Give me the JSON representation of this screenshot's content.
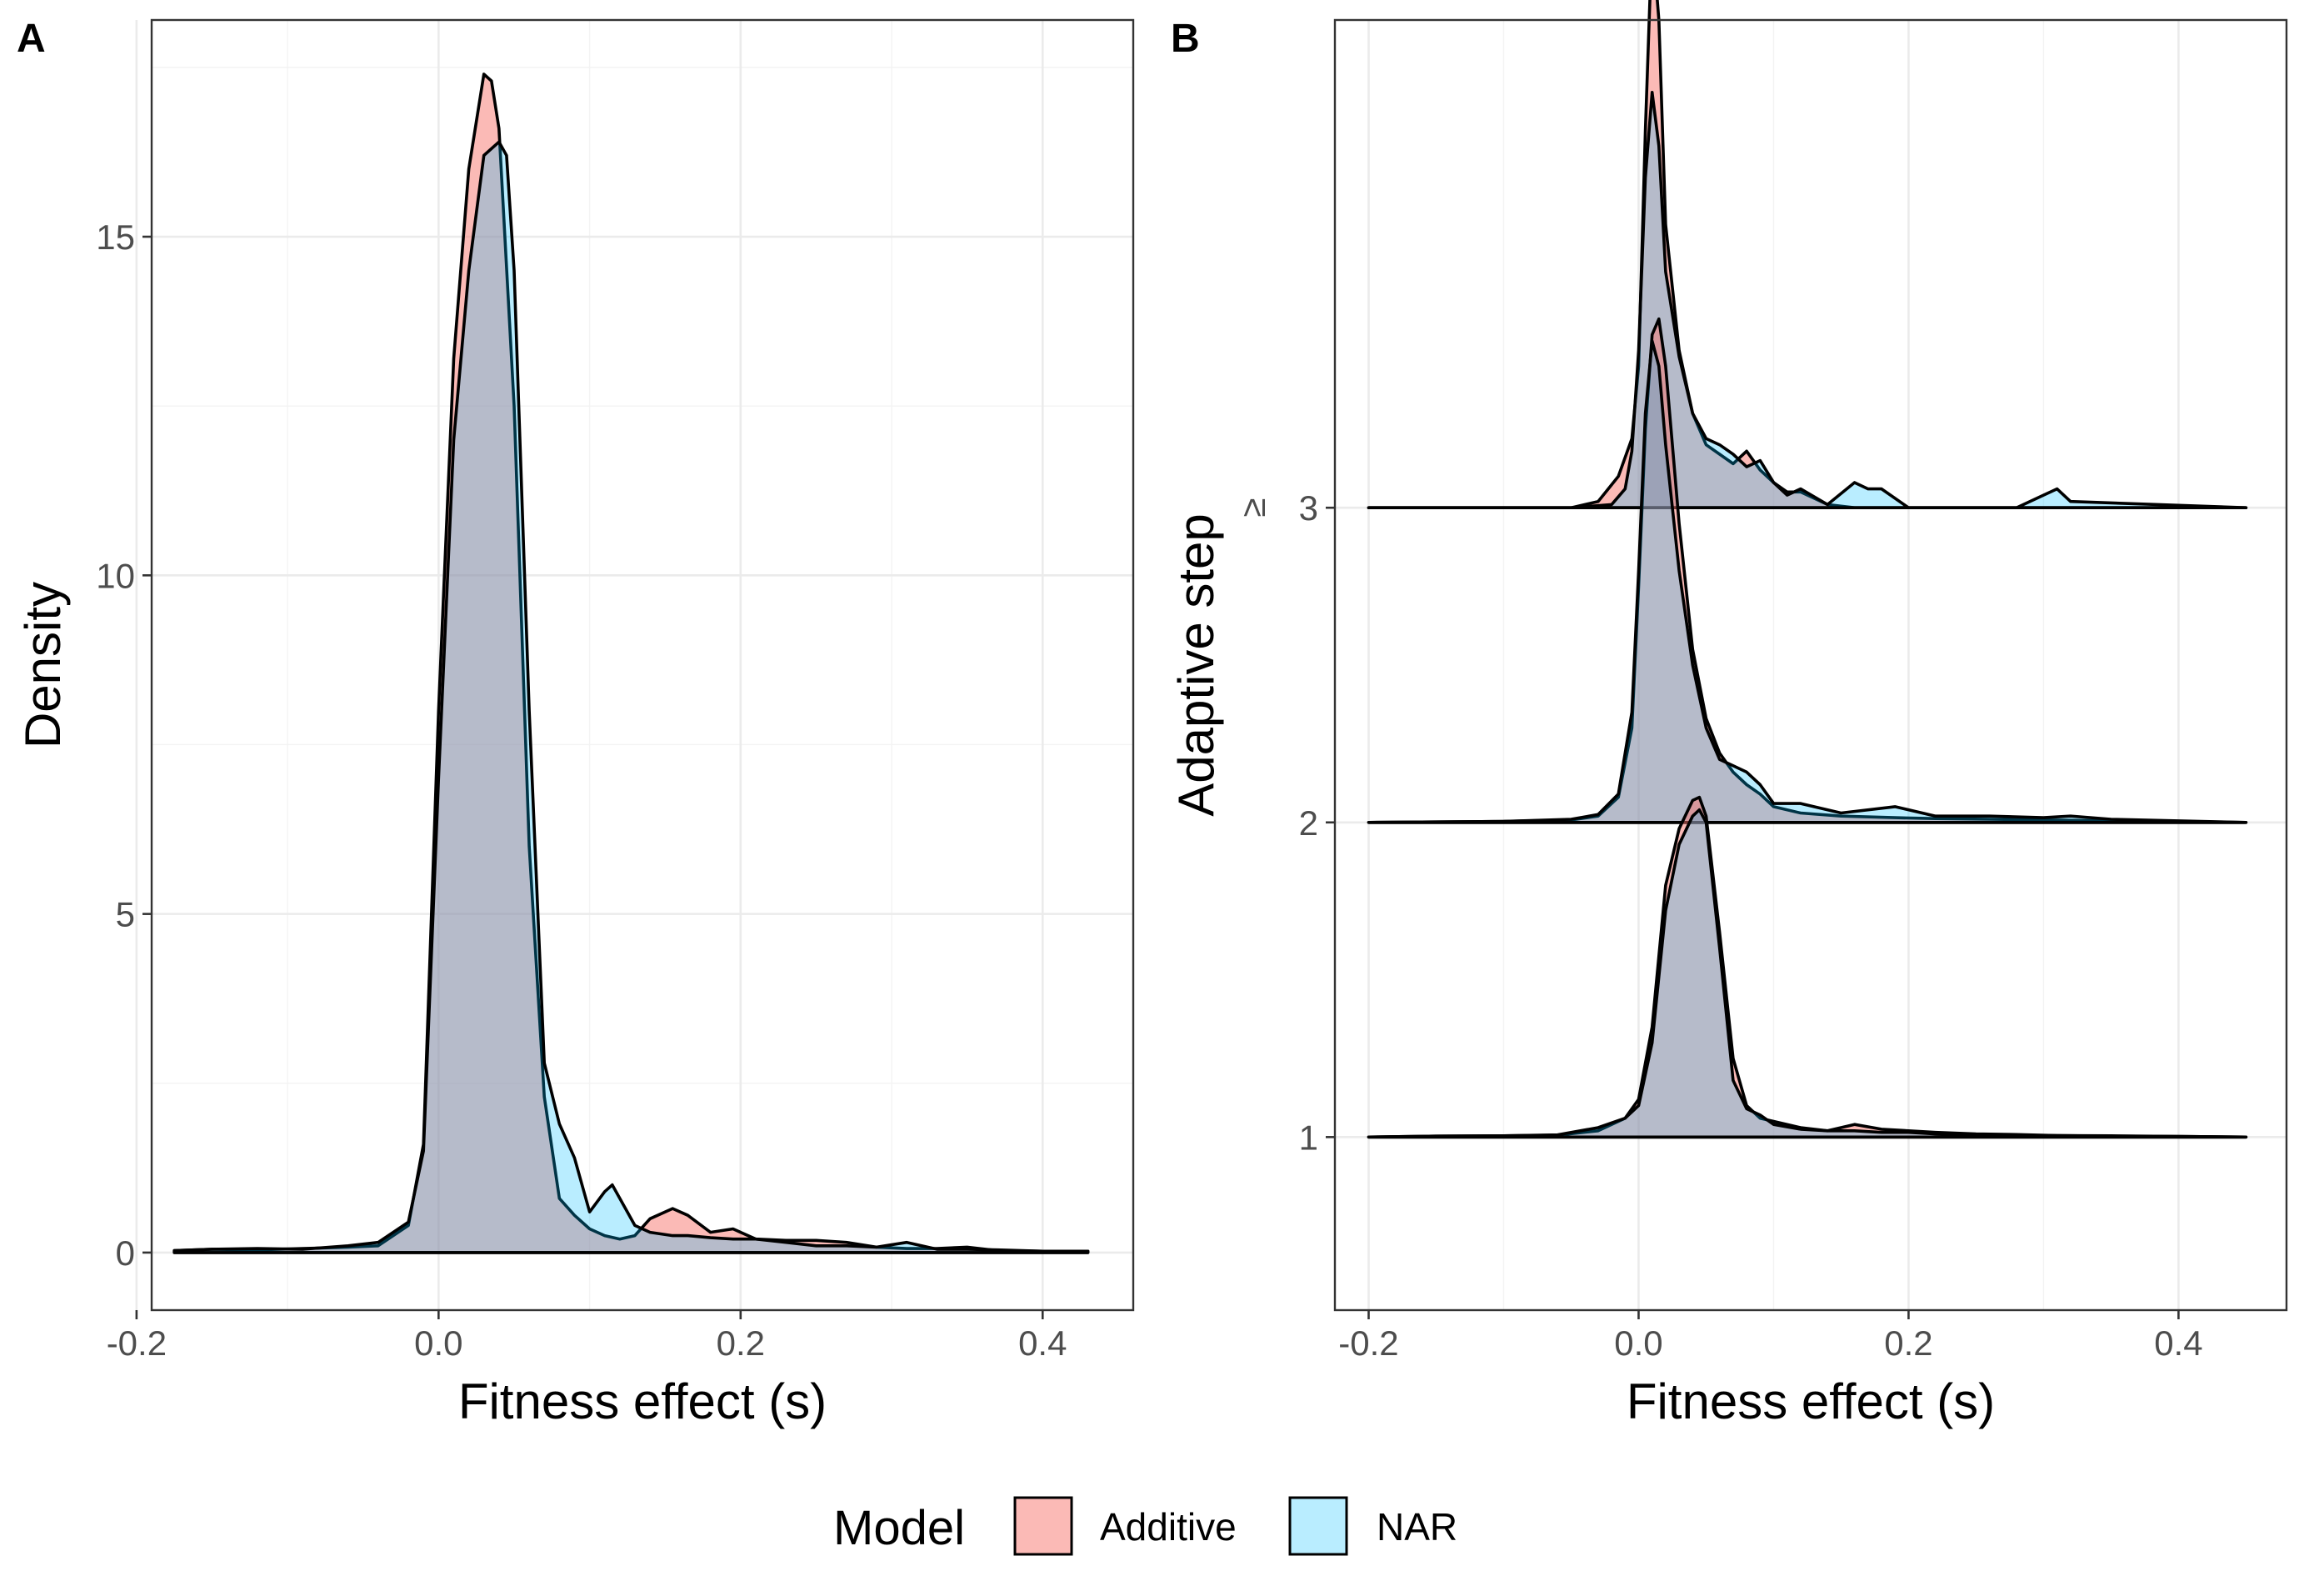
{
  "colors": {
    "Additive": "#F8766D",
    "NAR": "#00BFFF",
    "overlap_hint": "#a9b4b6",
    "outline": "#000000"
  },
  "legend": {
    "title": "Model",
    "items": [
      "Additive",
      "NAR"
    ],
    "placement": "bottom-center"
  },
  "chart_data": [
    {
      "panel": "A",
      "type": "area",
      "title": "",
      "xlabel": "Fitness effect (s)",
      "ylabel": "Density",
      "xlim": [
        -0.19,
        0.46
      ],
      "ylim": [
        -0.85,
        18.2
      ],
      "xticks": [
        -0.2,
        0.0,
        0.2,
        0.4
      ],
      "xtick_labels": [
        "-0.2",
        "0.0",
        "0.2",
        "0.4"
      ],
      "yticks": [
        0,
        5,
        10,
        15
      ],
      "ytick_labels": [
        "0",
        "5",
        "10",
        "15"
      ],
      "grid": true,
      "series": [
        {
          "name": "Additive",
          "x": [
            -0.175,
            -0.15,
            -0.12,
            -0.09,
            -0.06,
            -0.04,
            -0.02,
            -0.01,
            0.0,
            0.01,
            0.02,
            0.03,
            0.035,
            0.04,
            0.05,
            0.06,
            0.07,
            0.08,
            0.09,
            0.1,
            0.11,
            0.12,
            0.13,
            0.14,
            0.155,
            0.165,
            0.18,
            0.195,
            0.21,
            0.23,
            0.25,
            0.27,
            0.29,
            0.31,
            0.33,
            0.35,
            0.37,
            0.4,
            0.43
          ],
          "y": [
            0.03,
            0.05,
            0.04,
            0.06,
            0.08,
            0.1,
            0.4,
            1.6,
            8.0,
            13.2,
            16.0,
            17.4,
            17.3,
            16.6,
            12.5,
            6.0,
            2.3,
            0.8,
            0.55,
            0.35,
            0.25,
            0.2,
            0.25,
            0.5,
            0.65,
            0.55,
            0.3,
            0.35,
            0.2,
            0.18,
            0.18,
            0.15,
            0.08,
            0.06,
            0.06,
            0.08,
            0.03,
            0.02,
            0.02
          ]
        },
        {
          "name": "NAR",
          "x": [
            -0.175,
            -0.15,
            -0.12,
            -0.09,
            -0.06,
            -0.04,
            -0.02,
            -0.01,
            0.0,
            0.01,
            0.02,
            0.03,
            0.04,
            0.045,
            0.05,
            0.06,
            0.07,
            0.08,
            0.09,
            0.1,
            0.11,
            0.115,
            0.12,
            0.13,
            0.14,
            0.155,
            0.165,
            0.18,
            0.195,
            0.21,
            0.23,
            0.25,
            0.27,
            0.29,
            0.31,
            0.33,
            0.35,
            0.37,
            0.4,
            0.43
          ],
          "y": [
            0.03,
            0.05,
            0.06,
            0.05,
            0.1,
            0.15,
            0.45,
            1.5,
            7.0,
            12.0,
            14.5,
            16.2,
            16.4,
            16.2,
            14.5,
            8.0,
            2.8,
            1.9,
            1.4,
            0.6,
            0.9,
            1.0,
            0.8,
            0.4,
            0.3,
            0.25,
            0.25,
            0.22,
            0.2,
            0.2,
            0.15,
            0.1,
            0.1,
            0.08,
            0.15,
            0.05,
            0.05,
            0.04,
            0.02,
            0.02
          ]
        }
      ]
    },
    {
      "panel": "B",
      "type": "ridgeline",
      "title": "",
      "xlabel": "Fitness effect (s)",
      "ylabel": "Adaptive step",
      "xlim": [
        -0.225,
        0.48
      ],
      "ylim": [
        0.45,
        4.55
      ],
      "xticks": [
        -0.2,
        0.0,
        0.2,
        0.4
      ],
      "xtick_labels": [
        "-0.2",
        "0.0",
        "0.2",
        "0.4"
      ],
      "yticks": [
        1,
        2,
        3
      ],
      "ytick_labels": [
        "1",
        "2",
        "≥ 3"
      ],
      "grid": true,
      "ridges": [
        {
          "step": "1",
          "series": [
            {
              "name": "Additive",
              "x": [
                -0.2,
                -0.15,
                -0.1,
                -0.06,
                -0.03,
                -0.01,
                0.0,
                0.01,
                0.02,
                0.03,
                0.04,
                0.045,
                0.05,
                0.06,
                0.07,
                0.08,
                0.09,
                0.1,
                0.12,
                0.14,
                0.16,
                0.18,
                0.2,
                0.22,
                0.25,
                0.28,
                0.31,
                0.35,
                0.4,
                0.45
              ],
              "y": [
                0.0,
                0.003,
                0.004,
                0.006,
                0.02,
                0.06,
                0.12,
                0.35,
                0.8,
                0.98,
                1.07,
                1.08,
                1.02,
                0.65,
                0.25,
                0.1,
                0.06,
                0.05,
                0.03,
                0.02,
                0.04,
                0.025,
                0.02,
                0.015,
                0.01,
                0.008,
                0.005,
                0.004,
                0.002,
                0.0
              ]
            },
            {
              "name": "NAR",
              "x": [
                -0.2,
                -0.15,
                -0.1,
                -0.06,
                -0.03,
                -0.01,
                0.0,
                0.01,
                0.02,
                0.03,
                0.04,
                0.045,
                0.05,
                0.06,
                0.07,
                0.08,
                0.09,
                0.1,
                0.12,
                0.14,
                0.16,
                0.18,
                0.2,
                0.22,
                0.25,
                0.28,
                0.31,
                0.35,
                0.4,
                0.45
              ],
              "y": [
                0.0,
                0.003,
                0.004,
                0.007,
                0.03,
                0.06,
                0.1,
                0.3,
                0.72,
                0.93,
                1.02,
                1.04,
                1.0,
                0.6,
                0.18,
                0.09,
                0.07,
                0.04,
                0.025,
                0.02,
                0.02,
                0.015,
                0.015,
                0.01,
                0.008,
                0.006,
                0.005,
                0.003,
                0.002,
                0.0
              ]
            }
          ]
        },
        {
          "step": "2",
          "series": [
            {
              "name": "Additive",
              "x": [
                -0.2,
                -0.1,
                -0.05,
                -0.03,
                -0.015,
                -0.005,
                0.0,
                0.005,
                0.01,
                0.015,
                0.02,
                0.03,
                0.04,
                0.05,
                0.06,
                0.07,
                0.08,
                0.09,
                0.1,
                0.12,
                0.15,
                0.19,
                0.22,
                0.26,
                0.3,
                0.35,
                0.4,
                0.45
              ],
              "y": [
                0.0,
                0.003,
                0.008,
                0.02,
                0.08,
                0.3,
                0.75,
                1.25,
                1.55,
                1.6,
                1.45,
                0.95,
                0.55,
                0.33,
                0.22,
                0.16,
                0.12,
                0.09,
                0.05,
                0.03,
                0.02,
                0.015,
                0.012,
                0.01,
                0.008,
                0.005,
                0.003,
                0.0
              ]
            },
            {
              "name": "NAR",
              "x": [
                -0.2,
                -0.1,
                -0.05,
                -0.03,
                -0.015,
                -0.005,
                0.0,
                0.005,
                0.01,
                0.015,
                0.02,
                0.03,
                0.04,
                0.05,
                0.06,
                0.07,
                0.08,
                0.09,
                0.1,
                0.12,
                0.15,
                0.19,
                0.22,
                0.26,
                0.3,
                0.32,
                0.35,
                0.4,
                0.45
              ],
              "y": [
                0.0,
                0.003,
                0.01,
                0.025,
                0.09,
                0.35,
                0.8,
                1.3,
                1.53,
                1.45,
                1.2,
                0.8,
                0.5,
                0.3,
                0.2,
                0.18,
                0.16,
                0.12,
                0.06,
                0.06,
                0.03,
                0.05,
                0.02,
                0.02,
                0.015,
                0.02,
                0.01,
                0.005,
                0.0
              ]
            }
          ]
        },
        {
          "step": "≥ 3",
          "series": [
            {
              "name": "Additive",
              "x": [
                -0.2,
                -0.05,
                -0.03,
                -0.015,
                -0.005,
                0.0,
                0.005,
                0.01,
                0.015,
                0.02,
                0.03,
                0.04,
                0.05,
                0.06,
                0.07,
                0.08,
                0.09,
                0.1,
                0.11,
                0.12,
                0.14,
                0.16,
                0.2,
                0.3,
                0.45
              ],
              "y": [
                0.0,
                0.0,
                0.02,
                0.1,
                0.22,
                0.45,
                1.2,
                1.82,
                1.55,
                0.9,
                0.5,
                0.3,
                0.2,
                0.17,
                0.14,
                0.18,
                0.12,
                0.08,
                0.05,
                0.05,
                0.01,
                0.0,
                0.0,
                0.0,
                0.0
              ]
            },
            {
              "name": "NAR",
              "x": [
                -0.2,
                -0.05,
                -0.02,
                -0.01,
                -0.005,
                0.0,
                0.005,
                0.01,
                0.015,
                0.02,
                0.03,
                0.04,
                0.05,
                0.06,
                0.07,
                0.08,
                0.09,
                0.1,
                0.11,
                0.12,
                0.14,
                0.16,
                0.17,
                0.18,
                0.2,
                0.28,
                0.3,
                0.31,
                0.32,
                0.45
              ],
              "y": [
                0.0,
                0.0,
                0.01,
                0.06,
                0.18,
                0.5,
                1.05,
                1.32,
                1.15,
                0.75,
                0.48,
                0.3,
                0.22,
                0.2,
                0.17,
                0.13,
                0.15,
                0.08,
                0.04,
                0.06,
                0.01,
                0.08,
                0.06,
                0.06,
                0.0,
                0.0,
                0.04,
                0.06,
                0.02,
                0.0
              ]
            }
          ]
        }
      ]
    }
  ]
}
